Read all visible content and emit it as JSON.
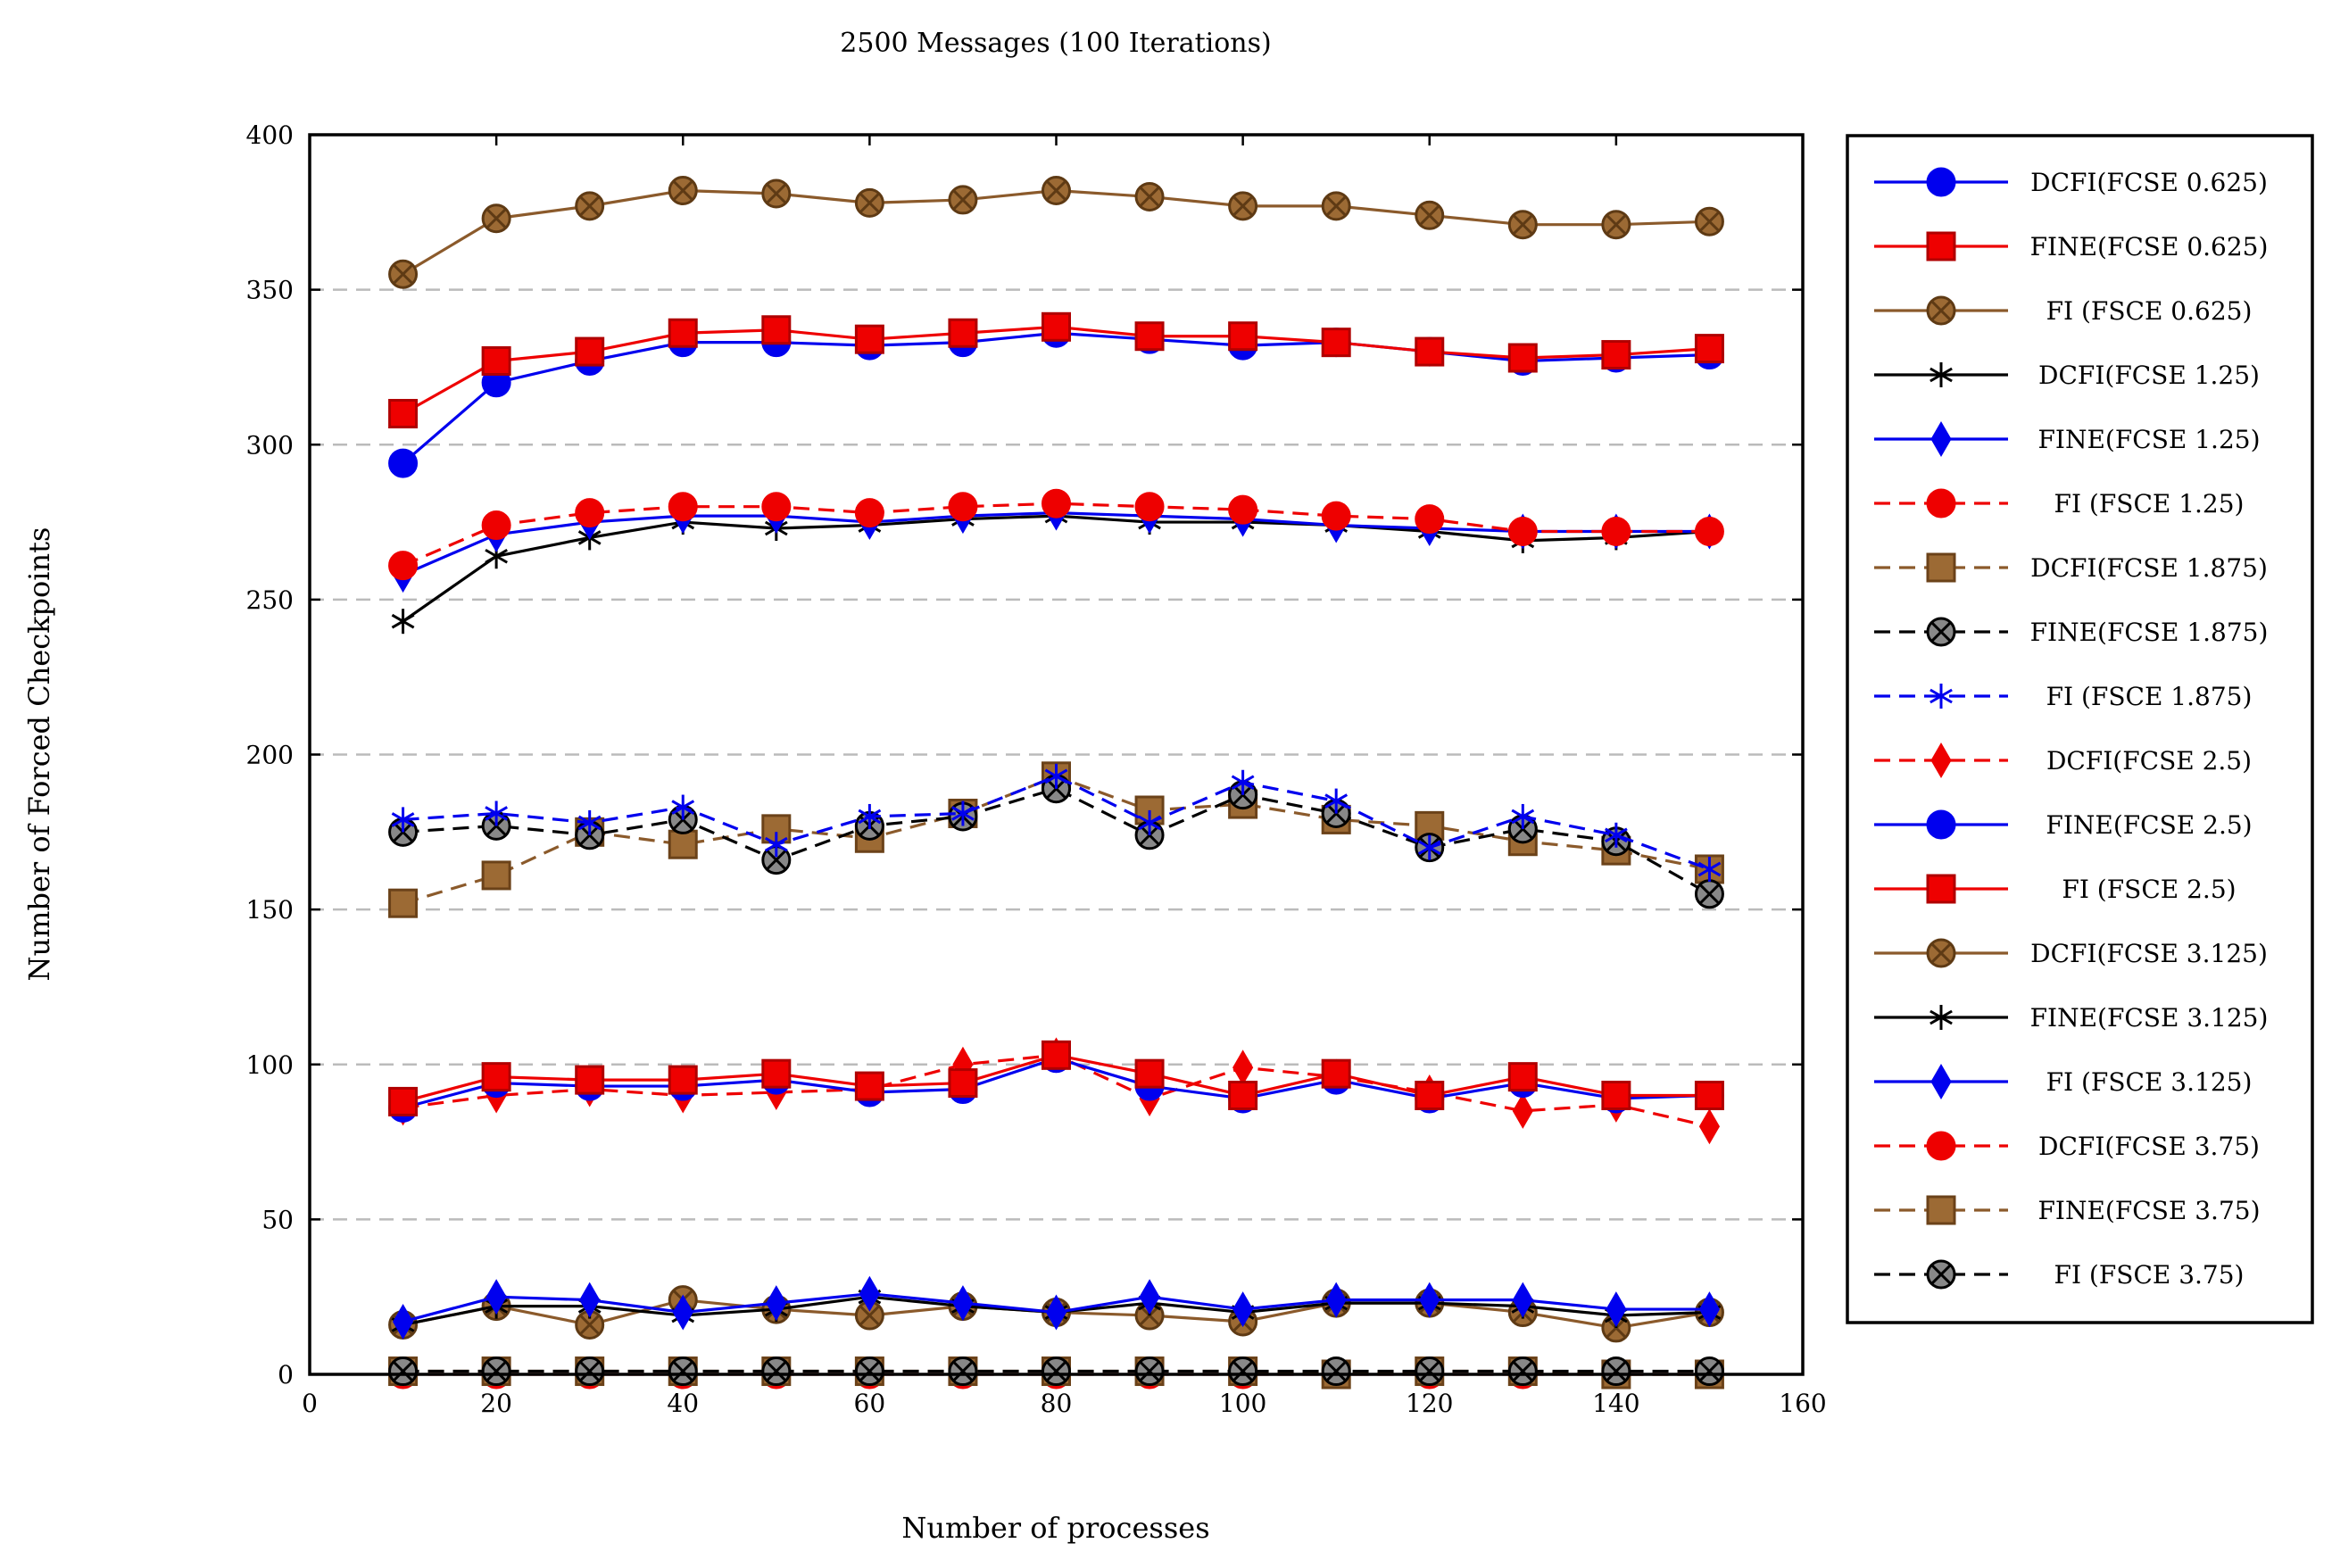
{
  "chart_data": {
    "type": "line",
    "title": "2500 Messages (100 Iterations)",
    "xlabel": "Number of processes",
    "ylabel": "Number of Forced Checkpoints",
    "xlim": [
      0,
      160
    ],
    "ylim": [
      0,
      400
    ],
    "xticks": [
      0,
      20,
      40,
      60,
      80,
      100,
      120,
      140,
      160
    ],
    "yticks": [
      0,
      50,
      100,
      150,
      200,
      250,
      300,
      350,
      400
    ],
    "grid": "horizontal dashed",
    "legend_position": "right",
    "x": [
      10,
      20,
      30,
      40,
      50,
      60,
      70,
      80,
      90,
      100,
      110,
      120,
      130,
      140,
      150
    ],
    "series": [
      {
        "name": "DCFI(FCSE 0.625)",
        "color": "#0000ee",
        "dash": "solid",
        "marker": "circle",
        "values": [
          294,
          320,
          327,
          333,
          333,
          332,
          333,
          336,
          334,
          332,
          333,
          330,
          327,
          328,
          329
        ]
      },
      {
        "name": "FINE(FCSE 0.625)",
        "color": "#ee0000",
        "dash": "solid",
        "marker": "square",
        "values": [
          310,
          327,
          330,
          336,
          337,
          334,
          336,
          338,
          335,
          335,
          333,
          330,
          328,
          329,
          331
        ]
      },
      {
        "name": "FI (FSCE 0.625)",
        "color": "#8b5a2b",
        "dash": "solid",
        "marker": "otimes",
        "values": [
          355,
          373,
          377,
          382,
          381,
          378,
          379,
          382,
          380,
          377,
          377,
          374,
          371,
          371,
          372
        ]
      },
      {
        "name": "DCFI(FCSE 1.25)",
        "color": "#000000",
        "dash": "solid",
        "marker": "star",
        "values": [
          243,
          264,
          270,
          275,
          273,
          274,
          276,
          277,
          275,
          275,
          274,
          272,
          269,
          270,
          272
        ]
      },
      {
        "name": "FINE(FCSE 1.25)",
        "color": "#0000ee",
        "dash": "solid",
        "marker": "diamond",
        "values": [
          258,
          271,
          275,
          277,
          277,
          275,
          277,
          278,
          277,
          276,
          274,
          273,
          272,
          272,
          272
        ]
      },
      {
        "name": "FI (FSCE 1.25)",
        "color": "#ee0000",
        "dash": "dashed",
        "marker": "circle",
        "values": [
          261,
          274,
          278,
          280,
          280,
          278,
          280,
          281,
          280,
          279,
          277,
          276,
          272,
          272,
          272
        ]
      },
      {
        "name": "DCFI(FCSE 1.875)",
        "color": "#8b5a2b",
        "dash": "dashed",
        "marker": "square",
        "values": [
          152,
          161,
          175,
          171,
          176,
          173,
          181,
          193,
          182,
          184,
          179,
          177,
          172,
          169,
          163
        ]
      },
      {
        "name": "FINE(FCSE 1.875)",
        "color": "#000000",
        "dash": "dashed",
        "marker": "otimes",
        "values": [
          175,
          177,
          174,
          179,
          166,
          177,
          180,
          189,
          174,
          187,
          181,
          170,
          176,
          172,
          155
        ]
      },
      {
        "name": "FI (FSCE 1.875)",
        "color": "#0000ee",
        "dash": "dashed",
        "marker": "star",
        "values": [
          179,
          181,
          178,
          183,
          171,
          180,
          181,
          193,
          178,
          191,
          185,
          170,
          180,
          174,
          163
        ]
      },
      {
        "name": "DCFI(FCSE 2.5)",
        "color": "#ee0000",
        "dash": "dashed",
        "marker": "diamond",
        "values": [
          86,
          90,
          92,
          90,
          91,
          92,
          100,
          103,
          89,
          99,
          96,
          91,
          85,
          87,
          80
        ]
      },
      {
        "name": "FINE(FCSE 2.5)",
        "color": "#0000ee",
        "dash": "solid",
        "marker": "circle",
        "values": [
          86,
          94,
          93,
          93,
          95,
          91,
          92,
          102,
          93,
          89,
          95,
          89,
          94,
          89,
          90
        ]
      },
      {
        "name": "FI (FSCE 2.5)",
        "color": "#ee0000",
        "dash": "solid",
        "marker": "square",
        "values": [
          88,
          96,
          95,
          95,
          97,
          93,
          94,
          103,
          97,
          90,
          97,
          90,
          96,
          90,
          90
        ]
      },
      {
        "name": "DCFI(FCSE 3.125)",
        "color": "#8b5a2b",
        "dash": "solid",
        "marker": "otimes",
        "values": [
          16,
          22,
          16,
          24,
          21,
          19,
          22,
          20,
          19,
          17,
          23,
          23,
          20,
          15,
          20
        ]
      },
      {
        "name": "FINE(FCSE 3.125)",
        "color": "#000000",
        "dash": "solid",
        "marker": "star",
        "values": [
          16,
          22,
          22,
          19,
          21,
          25,
          22,
          20,
          23,
          20,
          23,
          23,
          22,
          19,
          20
        ]
      },
      {
        "name": "FI (FSCE 3.125)",
        "color": "#0000ee",
        "dash": "solid",
        "marker": "diamond",
        "values": [
          17,
          25,
          24,
          20,
          23,
          26,
          23,
          20,
          25,
          21,
          24,
          24,
          24,
          21,
          21
        ]
      },
      {
        "name": "DCFI(FCSE 3.75)",
        "color": "#ee0000",
        "dash": "dashed",
        "marker": "circle",
        "values": [
          0,
          0,
          0,
          0,
          0,
          0,
          0,
          0,
          0,
          0,
          0,
          0,
          0,
          0,
          0
        ]
      },
      {
        "name": "FINE(FCSE 3.75)",
        "color": "#8b5a2b",
        "dash": "dashed",
        "marker": "square",
        "values": [
          1,
          1,
          1,
          1,
          1,
          1,
          1,
          1,
          1,
          1,
          0,
          1,
          1,
          0,
          0
        ]
      },
      {
        "name": "FI (FSCE 3.75)",
        "color": "#000000",
        "dash": "dashed",
        "marker": "otimes",
        "values": [
          1,
          1,
          1,
          1,
          1,
          1,
          1,
          1,
          1,
          1,
          1,
          1,
          1,
          1,
          1
        ]
      }
    ]
  }
}
